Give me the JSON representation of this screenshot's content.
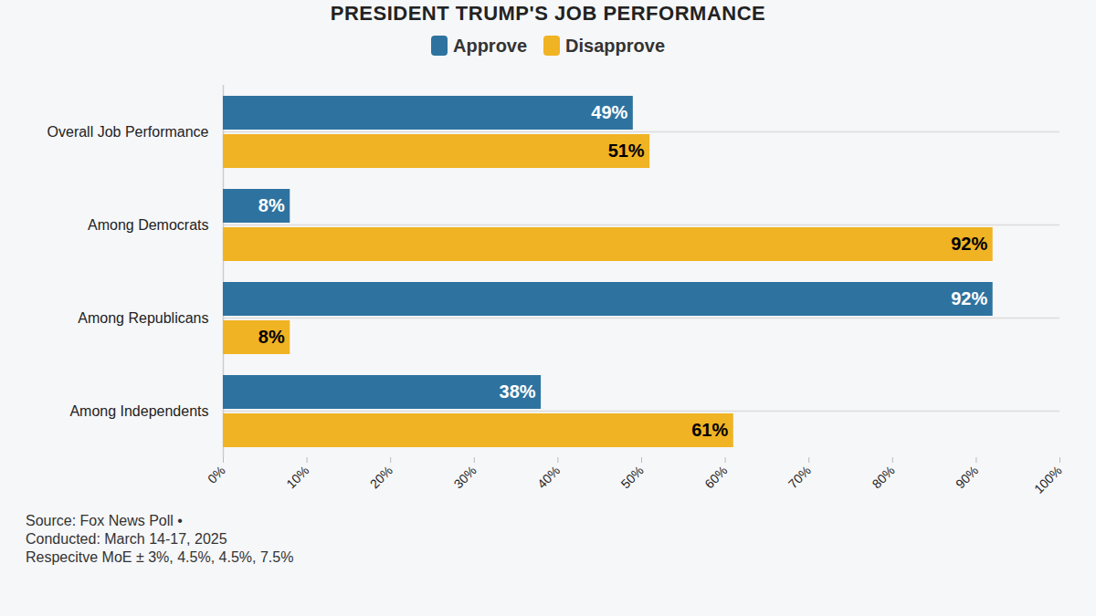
{
  "chart_data": {
    "type": "bar",
    "orientation": "horizontal",
    "title": "PRESIDENT TRUMP'S JOB PERFORMANCE",
    "categories": [
      "Overall Job Performance",
      "Among Democrats",
      "Among Republicans",
      "Among Independents"
    ],
    "series": [
      {
        "name": "Approve",
        "color": "#2e73a0",
        "values": [
          49,
          8,
          92,
          38
        ],
        "value_labels": [
          "49%",
          "8%",
          "92%",
          "38%"
        ]
      },
      {
        "name": "Disapprove",
        "color": "#f0b323",
        "values": [
          51,
          92,
          8,
          61
        ],
        "value_labels": [
          "51%",
          "92%",
          "8%",
          "61%"
        ]
      }
    ],
    "xlim": [
      0,
      100
    ],
    "xticks": [
      {
        "value": 0,
        "label": "0%"
      },
      {
        "value": 10,
        "label": "10%"
      },
      {
        "value": 20,
        "label": "20%"
      },
      {
        "value": 30,
        "label": "30%"
      },
      {
        "value": 40,
        "label": "40%"
      },
      {
        "value": 50,
        "label": "50%"
      },
      {
        "value": 60,
        "label": "60%"
      },
      {
        "value": 70,
        "label": "70%"
      },
      {
        "value": 80,
        "label": "80%"
      },
      {
        "value": 90,
        "label": "90%"
      },
      {
        "value": 100,
        "label": "100%"
      }
    ],
    "data_labels": true,
    "grid": true,
    "legend": "top",
    "annotations": [
      "Source: Fox News Poll •",
      "Conducted: March 14-17, 2025",
      "Respecitve MoE ± 3%, 4.5%, 4.5%, 7.5%"
    ]
  }
}
